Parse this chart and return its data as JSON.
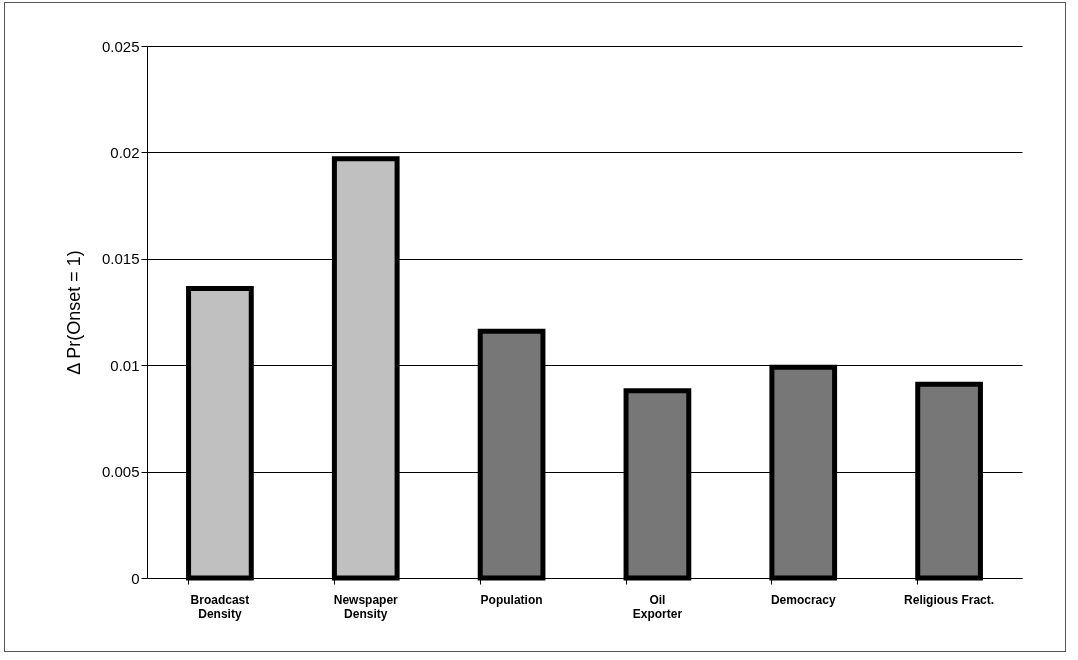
{
  "chart_data": {
    "type": "bar",
    "ylabel": "Δ Pr(Onset = 1)",
    "categories": [
      "Broadcast\nDensity",
      "Newspaper\nDensity",
      "Population",
      "Oil\nExporter",
      "Democracy",
      "Religious Fract."
    ],
    "values": [
      0.0136,
      0.0197,
      0.0116,
      0.0088,
      0.0099,
      0.0091
    ],
    "colors": [
      "#c0c0c0",
      "#c0c0c0",
      "#777777",
      "#777777",
      "#777777",
      "#777777"
    ],
    "ylim": [
      0,
      0.025
    ],
    "yticks": [
      0,
      0.005,
      0.01,
      0.015,
      0.02,
      0.025
    ],
    "grid": "y"
  }
}
